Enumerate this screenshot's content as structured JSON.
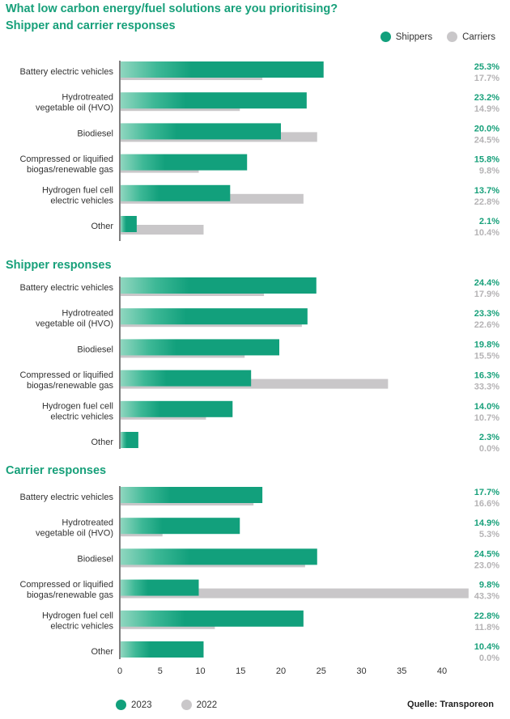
{
  "title": "What low carbon energy/fuel solutions are you prioritising?",
  "legend_top": {
    "shippers": "Shippers",
    "carriers": "Carriers"
  },
  "legend_bottom": {
    "y2023": "2023",
    "y2022": "2022"
  },
  "source": "Quelle: Transporeon",
  "colors": {
    "green": "#12a07c",
    "green_light": "#8fd6bf",
    "grey": "#c9c7c9",
    "value_green": "#17a07a",
    "value_grey": "#b5b3b5"
  },
  "chart_data": [
    {
      "type": "bar",
      "orientation": "horizontal",
      "title": "Shipper and carrier responses",
      "categories": [
        [
          "Battery electric vehicles"
        ],
        [
          "Hydrotreated",
          "vegetable oil (HVO)"
        ],
        [
          "Biodiesel"
        ],
        [
          "Compressed or liquified",
          "biogas/renewable gas"
        ],
        [
          "Hydrogen fuel cell",
          "electric vehicles"
        ],
        [
          "Other"
        ]
      ],
      "series": [
        {
          "name": "Shippers",
          "values": [
            25.3,
            23.2,
            20.0,
            15.8,
            13.7,
            2.1
          ],
          "labels": [
            "25.3%",
            "23.2%",
            "20.0%",
            "15.8%",
            "13.7%",
            "2.1%"
          ]
        },
        {
          "name": "Carriers",
          "values": [
            17.7,
            14.9,
            24.5,
            9.8,
            22.8,
            10.4
          ],
          "labels": [
            "17.7%",
            "14.9%",
            "24.5%",
            "9.8%",
            "22.8%",
            "10.4%"
          ]
        }
      ]
    },
    {
      "type": "bar",
      "orientation": "horizontal",
      "title": "Shipper responses",
      "categories": [
        [
          "Battery electric vehicles"
        ],
        [
          "Hydrotreated",
          "vegetable oil (HVO)"
        ],
        [
          "Biodiesel"
        ],
        [
          "Compressed or liquified",
          "biogas/renewable gas"
        ],
        [
          "Hydrogen fuel cell",
          "electric vehicles"
        ],
        [
          "Other"
        ]
      ],
      "series": [
        {
          "name": "2023",
          "values": [
            24.4,
            23.3,
            19.8,
            16.3,
            14.0,
            2.3
          ],
          "labels": [
            "24.4%",
            "23.3%",
            "19.8%",
            "16.3%",
            "14.0%",
            "2.3%"
          ]
        },
        {
          "name": "2022",
          "values": [
            17.9,
            22.6,
            15.5,
            33.3,
            10.7,
            0.0
          ],
          "labels": [
            "17.9%",
            "22.6%",
            "15.5%",
            "33.3%",
            "10.7%",
            "0.0%"
          ]
        }
      ]
    },
    {
      "type": "bar",
      "orientation": "horizontal",
      "title": "Carrier responses",
      "categories": [
        [
          "Battery electric vehicles"
        ],
        [
          "Hydrotreated",
          "vegetable oil (HVO)"
        ],
        [
          "Biodiesel"
        ],
        [
          "Compressed or liquified",
          "biogas/renewable gas"
        ],
        [
          "Hydrogen fuel cell",
          "electric vehicles"
        ],
        [
          "Other"
        ]
      ],
      "series": [
        {
          "name": "2023",
          "values": [
            17.7,
            14.9,
            24.5,
            9.8,
            22.8,
            10.4
          ],
          "labels": [
            "17.7%",
            "14.9%",
            "24.5%",
            "9.8%",
            "22.8%",
            "10.4%"
          ]
        },
        {
          "name": "2022",
          "values": [
            16.6,
            5.3,
            23.0,
            43.3,
            11.8,
            0.0
          ],
          "labels": [
            "16.6%",
            "5.3%",
            "23.0%",
            "43.3%",
            "11.8%",
            "0.0%"
          ]
        }
      ],
      "xlim": [
        0,
        43.3
      ],
      "xticks": [
        0,
        5,
        10,
        15,
        20,
        25,
        30,
        35,
        40
      ]
    }
  ]
}
